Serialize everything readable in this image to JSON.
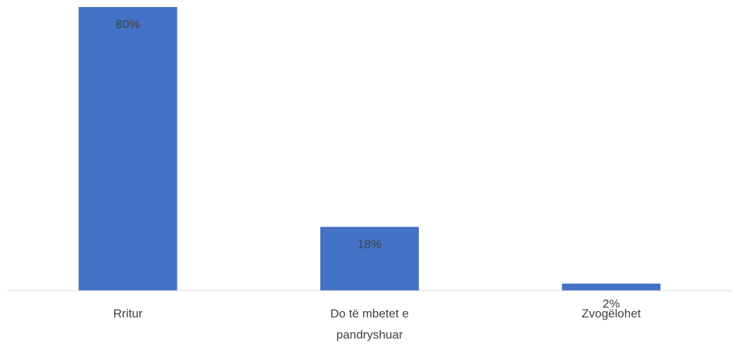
{
  "chart_data": {
    "type": "bar",
    "categories": [
      [
        "Rritur"
      ],
      [
        "Do të mbetet e",
        "pandryshuar"
      ],
      [
        "Zvogëlohet"
      ]
    ],
    "values": [
      80,
      18,
      2
    ],
    "data_labels": [
      "80%",
      "18%",
      "2%"
    ],
    "unit": "%",
    "ylim": [
      0,
      80
    ],
    "grid": false,
    "legend": "none",
    "title": "",
    "xlabel": "",
    "ylabel": "",
    "bar_color": "#4472C4",
    "axis_color": "#D9D9D9",
    "label_color": "#404040"
  }
}
